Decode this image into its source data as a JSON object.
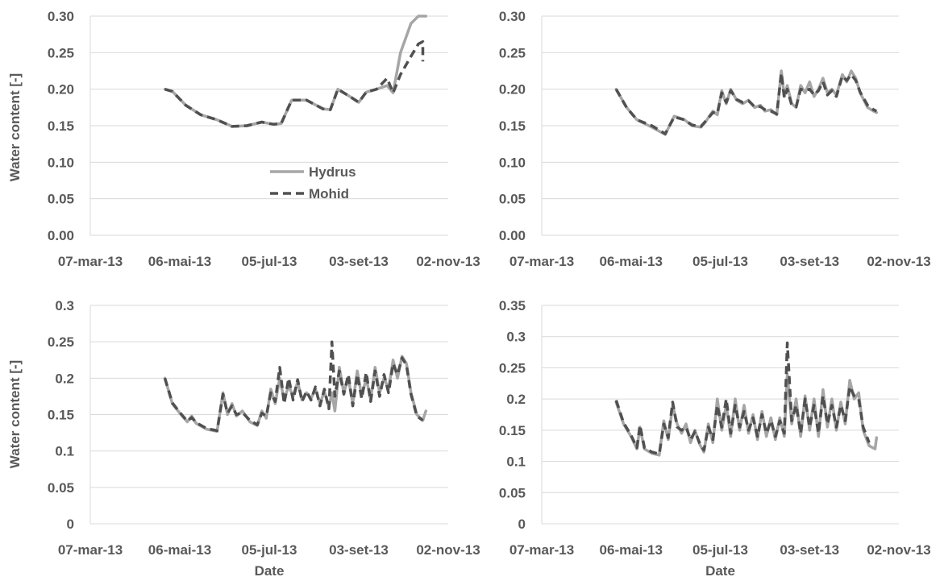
{
  "chart_data": [
    {
      "type": "line",
      "xlabel": "",
      "ylabel": "Water content [-]",
      "x_ticks": [
        "07-mar-13",
        "06-mai-13",
        "05-jul-13",
        "03-set-13",
        "02-nov-13"
      ],
      "y_ticks": [
        "0.00",
        "0.05",
        "0.10",
        "0.15",
        "0.20",
        "0.25",
        "0.30"
      ],
      "ylim": [
        0,
        0.3
      ],
      "grid": true,
      "legend": {
        "position": "center",
        "entries": [
          "Hydrus",
          "Mohid"
        ]
      },
      "series": [
        {
          "name": "Hydrus",
          "x": [
            "2013-04-26",
            "2013-05-01",
            "2013-05-10",
            "2013-05-20",
            "2013-05-31",
            "2013-06-10",
            "2013-06-20",
            "2013-06-30",
            "2013-07-05",
            "2013-07-08",
            "2013-07-13",
            "2013-07-20",
            "2013-07-30",
            "2013-08-10",
            "2013-08-15",
            "2013-08-20",
            "2013-08-28",
            "2013-09-03",
            "2013-09-08",
            "2013-09-15",
            "2013-09-22",
            "2013-09-26",
            "2013-10-01",
            "2013-10-08",
            "2013-10-13",
            "2013-10-18"
          ],
          "values": [
            0.2,
            0.197,
            0.178,
            0.165,
            0.158,
            0.149,
            0.15,
            0.155,
            0.153,
            0.152,
            0.153,
            0.185,
            0.185,
            0.173,
            0.172,
            0.2,
            0.19,
            0.182,
            0.196,
            0.2,
            0.205,
            0.195,
            0.25,
            0.29,
            0.3,
            0.3
          ]
        },
        {
          "name": "Mohid",
          "x": [
            "2013-04-26",
            "2013-05-01",
            "2013-05-10",
            "2013-05-20",
            "2013-05-31",
            "2013-06-10",
            "2013-06-20",
            "2013-06-30",
            "2013-07-05",
            "2013-07-08",
            "2013-07-13",
            "2013-07-20",
            "2013-07-30",
            "2013-08-10",
            "2013-08-15",
            "2013-08-20",
            "2013-08-28",
            "2013-09-03",
            "2013-09-08",
            "2013-09-15",
            "2013-09-22",
            "2013-09-26",
            "2013-10-01",
            "2013-10-08",
            "2013-10-13",
            "2013-10-16",
            "2013-10-16"
          ],
          "values": [
            0.2,
            0.197,
            0.178,
            0.165,
            0.158,
            0.149,
            0.15,
            0.155,
            0.153,
            0.152,
            0.153,
            0.185,
            0.185,
            0.173,
            0.172,
            0.2,
            0.19,
            0.182,
            0.196,
            0.2,
            0.215,
            0.195,
            0.22,
            0.245,
            0.262,
            0.265,
            0.238
          ]
        }
      ]
    },
    {
      "type": "line",
      "xlabel": "",
      "ylabel": "",
      "x_ticks": [
        "07-mar-13",
        "06-mai-13",
        "05-jul-13",
        "03-set-13",
        "02-nov-13"
      ],
      "y_ticks": [
        "0.00",
        "0.05",
        "0.10",
        "0.15",
        "0.20",
        "0.25",
        "0.30"
      ],
      "ylim": [
        0,
        0.3
      ],
      "grid": true,
      "series": [
        {
          "name": "Hydrus",
          "x": [
            "2013-04-26",
            "2013-05-03",
            "2013-05-10",
            "2013-05-20",
            "2013-05-29",
            "2013-06-04",
            "2013-06-11",
            "2013-06-16",
            "2013-06-22",
            "2013-06-25",
            "2013-06-30",
            "2013-07-03",
            "2013-07-06",
            "2013-07-09",
            "2013-07-12",
            "2013-07-16",
            "2013-07-20",
            "2013-07-24",
            "2013-07-28",
            "2013-08-01",
            "2013-08-04",
            "2013-08-08",
            "2013-08-12",
            "2013-08-15",
            "2013-08-17",
            "2013-08-19",
            "2013-08-22",
            "2013-08-25",
            "2013-08-28",
            "2013-08-31",
            "2013-09-03",
            "2013-09-06",
            "2013-09-09",
            "2013-09-12",
            "2013-09-15",
            "2013-09-18",
            "2013-09-21",
            "2013-09-25",
            "2013-09-28",
            "2013-10-01",
            "2013-10-04",
            "2013-10-07",
            "2013-10-12",
            "2013-10-16",
            "2013-10-18"
          ],
          "values": [
            0.2,
            0.175,
            0.158,
            0.148,
            0.138,
            0.163,
            0.158,
            0.15,
            0.148,
            0.155,
            0.17,
            0.165,
            0.198,
            0.18,
            0.2,
            0.185,
            0.18,
            0.185,
            0.175,
            0.178,
            0.17,
            0.172,
            0.165,
            0.225,
            0.19,
            0.205,
            0.18,
            0.175,
            0.205,
            0.195,
            0.21,
            0.19,
            0.2,
            0.215,
            0.195,
            0.2,
            0.192,
            0.22,
            0.21,
            0.225,
            0.215,
            0.195,
            0.175,
            0.17,
            0.168
          ]
        },
        {
          "name": "Mohid",
          "x": [
            "2013-04-26",
            "2013-05-03",
            "2013-05-10",
            "2013-05-20",
            "2013-05-29",
            "2013-06-04",
            "2013-06-11",
            "2013-06-16",
            "2013-06-22",
            "2013-06-25",
            "2013-06-30",
            "2013-07-03",
            "2013-07-06",
            "2013-07-09",
            "2013-07-12",
            "2013-07-16",
            "2013-07-20",
            "2013-07-24",
            "2013-07-28",
            "2013-08-01",
            "2013-08-04",
            "2013-08-08",
            "2013-08-12",
            "2013-08-15",
            "2013-08-17",
            "2013-08-19",
            "2013-08-22",
            "2013-08-25",
            "2013-08-28",
            "2013-08-31",
            "2013-09-03",
            "2013-09-06",
            "2013-09-09",
            "2013-09-12",
            "2013-09-15",
            "2013-09-18",
            "2013-09-21",
            "2013-09-25",
            "2013-09-28",
            "2013-10-01",
            "2013-10-04",
            "2013-10-07",
            "2013-10-12",
            "2013-10-16",
            "2013-10-18"
          ],
          "values": [
            0.2,
            0.175,
            0.158,
            0.15,
            0.139,
            0.162,
            0.158,
            0.151,
            0.149,
            0.156,
            0.168,
            0.167,
            0.195,
            0.182,
            0.198,
            0.186,
            0.182,
            0.184,
            0.176,
            0.176,
            0.172,
            0.17,
            0.166,
            0.222,
            0.188,
            0.2,
            0.178,
            0.176,
            0.2,
            0.198,
            0.2,
            0.192,
            0.198,
            0.21,
            0.192,
            0.198,
            0.19,
            0.218,
            0.212,
            0.22,
            0.212,
            0.196,
            0.178,
            0.172,
            0.17
          ]
        }
      ]
    },
    {
      "type": "line",
      "xlabel": "Date",
      "ylabel": "Water content [-]",
      "x_ticks": [
        "07-mar-13",
        "06-mai-13",
        "05-jul-13",
        "03-set-13",
        "02-nov-13"
      ],
      "y_ticks": [
        "0",
        "0.05",
        "0.1",
        "0.15",
        "0.2",
        "0.25",
        "0.3"
      ],
      "ylim": [
        0,
        0.3
      ],
      "grid": true,
      "series": [
        {
          "name": "Hydrus",
          "x": [
            "2013-04-26",
            "2013-05-01",
            "2013-05-06",
            "2013-05-11",
            "2013-05-14",
            "2013-05-17",
            "2013-05-24",
            "2013-05-31",
            "2013-06-04",
            "2013-06-07",
            "2013-06-10",
            "2013-06-13",
            "2013-06-17",
            "2013-06-22",
            "2013-06-27",
            "2013-06-30",
            "2013-07-03",
            "2013-07-06",
            "2013-07-09",
            "2013-07-12",
            "2013-07-15",
            "2013-07-18",
            "2013-07-21",
            "2013-07-24",
            "2013-07-27",
            "2013-07-30",
            "2013-08-02",
            "2013-08-05",
            "2013-08-08",
            "2013-08-11",
            "2013-08-14",
            "2013-08-16",
            "2013-08-18",
            "2013-08-21",
            "2013-08-24",
            "2013-08-27",
            "2013-08-30",
            "2013-09-02",
            "2013-09-05",
            "2013-09-08",
            "2013-09-11",
            "2013-09-14",
            "2013-09-17",
            "2013-09-20",
            "2013-09-23",
            "2013-09-26",
            "2013-09-29",
            "2013-10-02",
            "2013-10-05",
            "2013-10-08",
            "2013-10-12",
            "2013-10-16",
            "2013-10-18"
          ],
          "values": [
            0.2,
            0.165,
            0.152,
            0.14,
            0.148,
            0.138,
            0.13,
            0.127,
            0.18,
            0.15,
            0.165,
            0.148,
            0.155,
            0.14,
            0.135,
            0.155,
            0.145,
            0.185,
            0.165,
            0.2,
            0.17,
            0.19,
            0.175,
            0.195,
            0.17,
            0.18,
            0.172,
            0.185,
            0.165,
            0.182,
            0.16,
            0.18,
            0.155,
            0.215,
            0.18,
            0.2,
            0.165,
            0.21,
            0.175,
            0.2,
            0.17,
            0.215,
            0.18,
            0.2,
            0.185,
            0.225,
            0.2,
            0.23,
            0.22,
            0.18,
            0.15,
            0.142,
            0.155
          ]
        },
        {
          "name": "Mohid",
          "x": [
            "2013-04-26",
            "2013-05-01",
            "2013-05-06",
            "2013-05-11",
            "2013-05-14",
            "2013-05-17",
            "2013-05-24",
            "2013-05-31",
            "2013-06-04",
            "2013-06-07",
            "2013-06-10",
            "2013-06-13",
            "2013-06-17",
            "2013-06-22",
            "2013-06-27",
            "2013-06-30",
            "2013-07-03",
            "2013-07-06",
            "2013-07-09",
            "2013-07-12",
            "2013-07-15",
            "2013-07-18",
            "2013-07-21",
            "2013-07-24",
            "2013-07-27",
            "2013-07-30",
            "2013-08-02",
            "2013-08-05",
            "2013-08-08",
            "2013-08-11",
            "2013-08-14",
            "2013-08-16",
            "2013-08-18",
            "2013-08-21",
            "2013-08-24",
            "2013-08-27",
            "2013-08-30",
            "2013-09-02",
            "2013-09-05",
            "2013-09-08",
            "2013-09-11",
            "2013-09-14",
            "2013-09-17",
            "2013-09-20",
            "2013-09-23",
            "2013-09-26",
            "2013-09-29",
            "2013-10-02",
            "2013-10-05",
            "2013-10-08",
            "2013-10-12",
            "2013-10-16"
          ],
          "values": [
            0.2,
            0.166,
            0.153,
            0.141,
            0.146,
            0.139,
            0.131,
            0.128,
            0.178,
            0.152,
            0.162,
            0.15,
            0.153,
            0.142,
            0.136,
            0.152,
            0.148,
            0.18,
            0.168,
            0.215,
            0.165,
            0.2,
            0.17,
            0.198,
            0.168,
            0.182,
            0.17,
            0.188,
            0.162,
            0.185,
            0.158,
            0.25,
            0.175,
            0.21,
            0.178,
            0.205,
            0.162,
            0.205,
            0.172,
            0.208,
            0.168,
            0.21,
            0.175,
            0.205,
            0.18,
            0.22,
            0.205,
            0.228,
            0.218,
            0.178,
            0.148,
            0.142
          ]
        }
      ]
    },
    {
      "type": "line",
      "xlabel": "Date",
      "ylabel": "",
      "x_ticks": [
        "07-mar-13",
        "06-mai-13",
        "05-jul-13",
        "03-set-13",
        "02-nov-13"
      ],
      "y_ticks": [
        "0",
        "0.05",
        "0.1",
        "0.15",
        "0.2",
        "0.25",
        "0.3",
        "0.35"
      ],
      "ylim": [
        0,
        0.35
      ],
      "grid": true,
      "series": [
        {
          "name": "Hydrus",
          "x": [
            "2013-04-26",
            "2013-05-01",
            "2013-05-06",
            "2013-05-10",
            "2013-05-12",
            "2013-05-15",
            "2013-05-20",
            "2013-05-25",
            "2013-05-28",
            "2013-05-31",
            "2013-06-03",
            "2013-06-06",
            "2013-06-09",
            "2013-06-12",
            "2013-06-15",
            "2013-06-18",
            "2013-06-21",
            "2013-06-24",
            "2013-06-27",
            "2013-06-30",
            "2013-07-03",
            "2013-07-06",
            "2013-07-09",
            "2013-07-12",
            "2013-07-15",
            "2013-07-18",
            "2013-07-21",
            "2013-07-24",
            "2013-07-27",
            "2013-07-30",
            "2013-08-02",
            "2013-08-05",
            "2013-08-08",
            "2013-08-11",
            "2013-08-14",
            "2013-08-17",
            "2013-08-19",
            "2013-08-22",
            "2013-08-25",
            "2013-08-28",
            "2013-08-31",
            "2013-09-03",
            "2013-09-06",
            "2013-09-09",
            "2013-09-12",
            "2013-09-15",
            "2013-09-18",
            "2013-09-21",
            "2013-09-24",
            "2013-09-27",
            "2013-09-30",
            "2013-10-03",
            "2013-10-06",
            "2013-10-09",
            "2013-10-13",
            "2013-10-17",
            "2013-10-18"
          ],
          "values": [
            0.195,
            0.16,
            0.14,
            0.12,
            0.155,
            0.12,
            0.113,
            0.11,
            0.165,
            0.135,
            0.19,
            0.16,
            0.145,
            0.16,
            0.13,
            0.15,
            0.128,
            0.115,
            0.16,
            0.13,
            0.2,
            0.15,
            0.19,
            0.14,
            0.2,
            0.15,
            0.19,
            0.145,
            0.175,
            0.135,
            0.18,
            0.14,
            0.17,
            0.135,
            0.17,
            0.14,
            0.24,
            0.16,
            0.2,
            0.14,
            0.205,
            0.15,
            0.2,
            0.14,
            0.215,
            0.155,
            0.2,
            0.15,
            0.195,
            0.16,
            0.23,
            0.2,
            0.21,
            0.15,
            0.125,
            0.12,
            0.138
          ]
        },
        {
          "name": "Mohid",
          "x": [
            "2013-04-26",
            "2013-05-01",
            "2013-05-06",
            "2013-05-10",
            "2013-05-12",
            "2013-05-15",
            "2013-05-20",
            "2013-05-25",
            "2013-05-28",
            "2013-05-31",
            "2013-06-03",
            "2013-06-06",
            "2013-06-09",
            "2013-06-12",
            "2013-06-15",
            "2013-06-18",
            "2013-06-21",
            "2013-06-24",
            "2013-06-27",
            "2013-06-30",
            "2013-07-03",
            "2013-07-06",
            "2013-07-09",
            "2013-07-12",
            "2013-07-15",
            "2013-07-18",
            "2013-07-21",
            "2013-07-24",
            "2013-07-27",
            "2013-07-30",
            "2013-08-02",
            "2013-08-05",
            "2013-08-08",
            "2013-08-11",
            "2013-08-14",
            "2013-08-17",
            "2013-08-19",
            "2013-08-22",
            "2013-08-25",
            "2013-08-28",
            "2013-08-31",
            "2013-09-03",
            "2013-09-06",
            "2013-09-09",
            "2013-09-12",
            "2013-09-15",
            "2013-09-18",
            "2013-09-21",
            "2013-09-24",
            "2013-09-27",
            "2013-09-30",
            "2013-10-03",
            "2013-10-06",
            "2013-10-09",
            "2013-10-13"
          ],
          "values": [
            0.198,
            0.162,
            0.142,
            0.122,
            0.158,
            0.122,
            0.115,
            0.112,
            0.16,
            0.138,
            0.195,
            0.155,
            0.15,
            0.155,
            0.135,
            0.148,
            0.13,
            0.118,
            0.155,
            0.135,
            0.19,
            0.155,
            0.2,
            0.145,
            0.19,
            0.155,
            0.18,
            0.15,
            0.17,
            0.14,
            0.175,
            0.145,
            0.165,
            0.14,
            0.165,
            0.145,
            0.29,
            0.165,
            0.19,
            0.145,
            0.2,
            0.155,
            0.19,
            0.145,
            0.205,
            0.16,
            0.19,
            0.155,
            0.19,
            0.165,
            0.22,
            0.205,
            0.2,
            0.155,
            0.13
          ]
        }
      ]
    }
  ]
}
